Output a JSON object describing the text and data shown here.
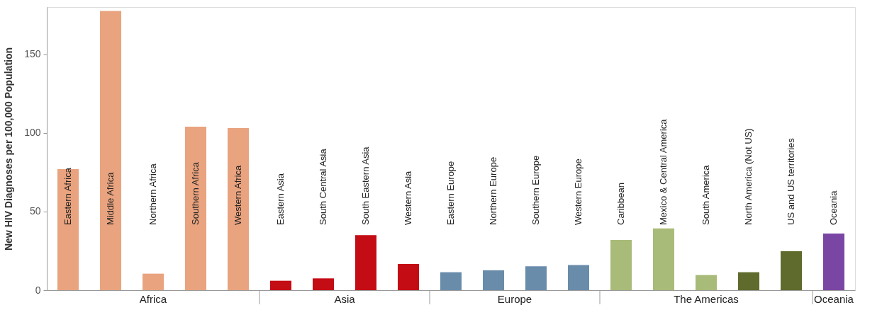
{
  "chart_data": {
    "type": "bar",
    "ylabel": "New HIV Diagnoses per 100,000 Population",
    "categories": [
      "Eastern Africa",
      "Middle Africa",
      "Northern Africa",
      "Southern Africa",
      "Western Africa",
      "Eastern Asia",
      "South Central Asia",
      "South Eastern Asia",
      "Western Asia",
      "Eastern Europe",
      "Northern Europe",
      "Southern Europe",
      "Western Europe",
      "Caribbean",
      "Mexico & Central America",
      "South America",
      "North America (Not US)",
      "US and US territories",
      "Oceania"
    ],
    "series": [
      {
        "name": "Africa",
        "color": "#e9a37f",
        "values": [
          77,
          177.5,
          10.5,
          104,
          103,
          null,
          null,
          null,
          null,
          null,
          null,
          null,
          null,
          null,
          null,
          null,
          null,
          null,
          null
        ]
      },
      {
        "name": "Asia",
        "color": "#c40c14",
        "values": [
          null,
          null,
          null,
          null,
          null,
          6,
          7.5,
          35,
          16.7,
          null,
          null,
          null,
          null,
          null,
          null,
          null,
          null,
          null,
          null
        ]
      },
      {
        "name": "Europe",
        "color": "#6a8cab",
        "values": [
          null,
          null,
          null,
          null,
          null,
          null,
          null,
          null,
          null,
          11.4,
          12.6,
          15.2,
          16,
          null,
          null,
          null,
          null,
          null,
          null
        ]
      },
      {
        "name": "The Americas",
        "colors": [
          null,
          null,
          null,
          null,
          null,
          null,
          null,
          null,
          null,
          null,
          null,
          null,
          null,
          "#a9bb78",
          "#a9bb78",
          "#a9bb78",
          "#5f6b2d",
          "#5f6b2d",
          null
        ],
        "values": [
          null,
          null,
          null,
          null,
          null,
          null,
          null,
          null,
          null,
          null,
          null,
          null,
          null,
          32,
          39.3,
          9.6,
          11.4,
          24.7,
          null
        ]
      },
      {
        "name": "Oceania",
        "color": "#7a46a4",
        "values": [
          null,
          null,
          null,
          null,
          null,
          null,
          null,
          null,
          null,
          null,
          null,
          null,
          null,
          null,
          null,
          null,
          null,
          null,
          36
        ]
      }
    ],
    "ylim": [
      0,
      180
    ],
    "yticks": [
      0,
      50,
      100,
      150
    ],
    "grid": false
  }
}
